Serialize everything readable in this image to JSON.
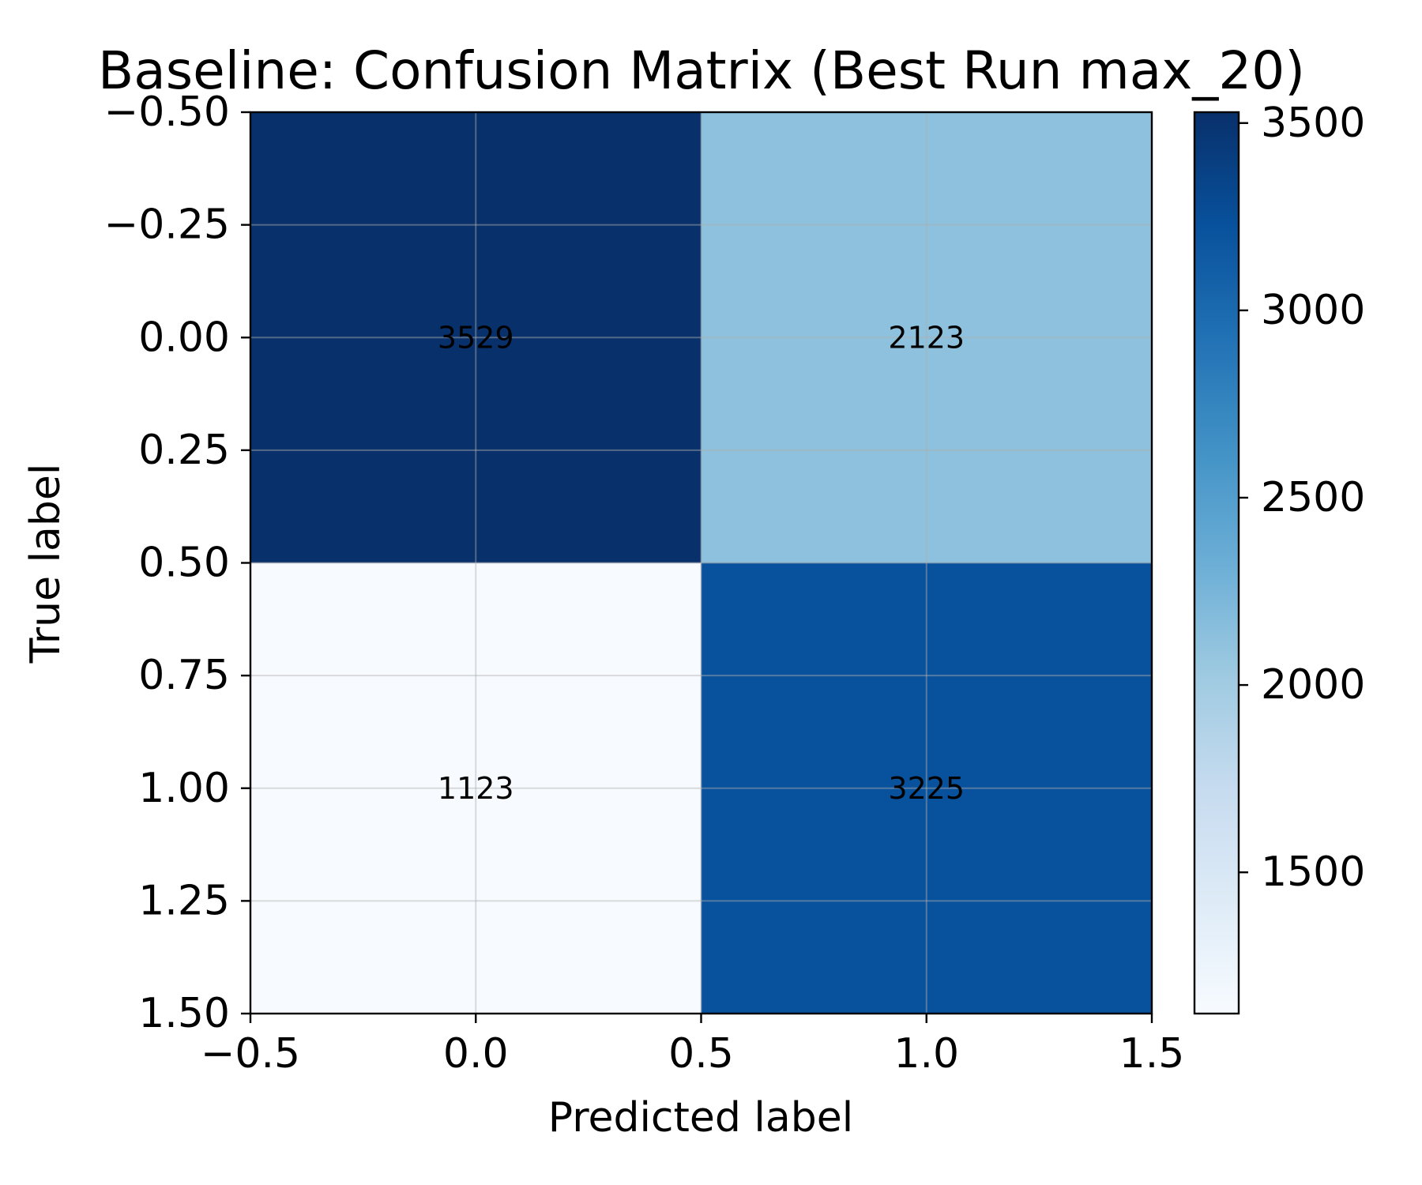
{
  "chart_data": {
    "type": "heatmap",
    "title": "Baseline: Confusion Matrix (Best Run max_20)",
    "xlabel": "Predicted label",
    "ylabel": "True label",
    "xlim": [
      -0.5,
      1.5
    ],
    "ylim": [
      1.5,
      -0.5
    ],
    "x_ticks": [
      "−0.5",
      "0.0",
      "0.5",
      "1.0",
      "1.5"
    ],
    "x_tick_values": [
      -0.5,
      0.0,
      0.5,
      1.0,
      1.5
    ],
    "y_ticks": [
      "−0.50",
      "−0.25",
      "0.00",
      "0.25",
      "0.50",
      "0.75",
      "1.00",
      "1.25",
      "1.50"
    ],
    "y_tick_values": [
      -0.5,
      -0.25,
      0.0,
      0.25,
      0.5,
      0.75,
      1.0,
      1.25,
      1.5
    ],
    "matrix": [
      [
        3529,
        2123
      ],
      [
        1123,
        3225
      ]
    ],
    "cell_labels": [
      [
        "3529",
        "2123"
      ],
      [
        "1123",
        "3225"
      ]
    ],
    "grid": true,
    "colormap": "Blues",
    "colormap_stops": [
      "#f7fbff",
      "#deebf7",
      "#c6dbef",
      "#9ecae1",
      "#6baed6",
      "#4292c6",
      "#2171b5",
      "#08519c",
      "#08306b"
    ],
    "colorbar": {
      "vmin": 1123,
      "vmax": 3529,
      "ticks": [
        "1500",
        "2000",
        "2500",
        "3000",
        "3500"
      ],
      "tick_values": [
        1500,
        2000,
        2500,
        3000,
        3500
      ],
      "placement": "right"
    }
  }
}
